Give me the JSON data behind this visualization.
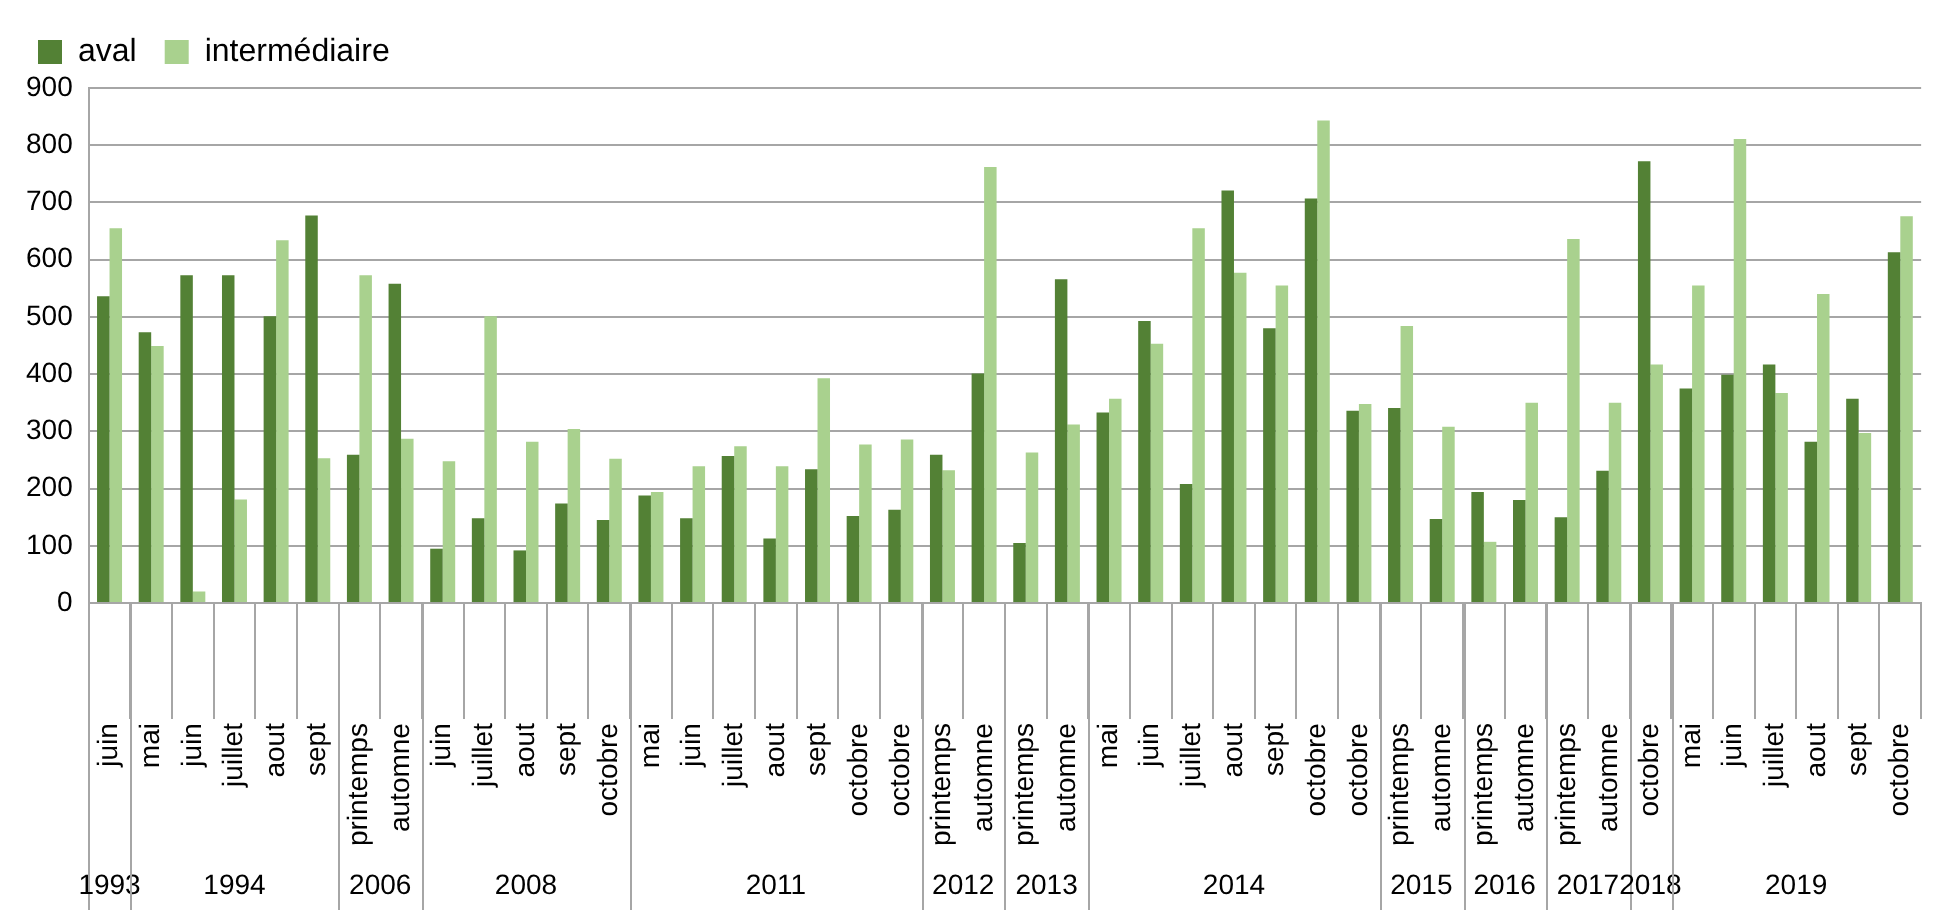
{
  "chart_data": {
    "type": "bar",
    "categories": [
      "juin",
      "mai",
      "juin",
      "juillet",
      "aout",
      "sept",
      "printemps",
      "automne",
      "juin",
      "juillet",
      "aout",
      "sept",
      "octobre",
      "mai",
      "juin",
      "juillet",
      "aout",
      "sept",
      "octobre",
      "octobre",
      "printemps",
      "automne",
      "printemps",
      "automne",
      "mai",
      "juin",
      "juillet",
      "aout",
      "sept",
      "octobre",
      "octobre",
      "printemps",
      "automne",
      "printemps",
      "automne",
      "printemps",
      "automne",
      "octobre",
      "mai",
      "juin",
      "juillet",
      "aout",
      "sept",
      "octobre"
    ],
    "series": [
      {
        "name": "aval",
        "color": "#538135",
        "values": [
          536,
          473,
          573,
          573,
          501,
          677,
          259,
          558,
          95,
          148,
          92,
          174,
          145,
          188,
          148,
          257,
          113,
          234,
          152,
          163,
          259,
          401,
          105,
          566,
          333,
          493,
          208,
          721,
          480,
          707,
          336,
          341,
          147,
          194,
          180,
          150,
          231,
          772,
          375,
          399,
          417,
          282,
          357,
          613
        ]
      },
      {
        "name": "intermédiaire",
        "color": "#a9d18e",
        "values": [
          655,
          449,
          20,
          181,
          634,
          253,
          573,
          287,
          248,
          501,
          282,
          304,
          252,
          194,
          239,
          274,
          239,
          393,
          277,
          286,
          232,
          762,
          263,
          312,
          357,
          453,
          655,
          577,
          555,
          843,
          348,
          484,
          308,
          107,
          350,
          636,
          350,
          417,
          555,
          811,
          367,
          540,
          297,
          676
        ]
      }
    ],
    "annotations": [
      "1993",
      "1994",
      "2006",
      "2008",
      "2011",
      "2012",
      "2013",
      "2014",
      "2015",
      "2016",
      "2017",
      "2018",
      "2019"
    ],
    "ylim": [
      0,
      900
    ],
    "yticks": [
      0,
      100,
      200,
      300,
      400,
      500,
      600,
      700,
      800,
      900
    ],
    "grid": "y",
    "legend": "top left"
  }
}
